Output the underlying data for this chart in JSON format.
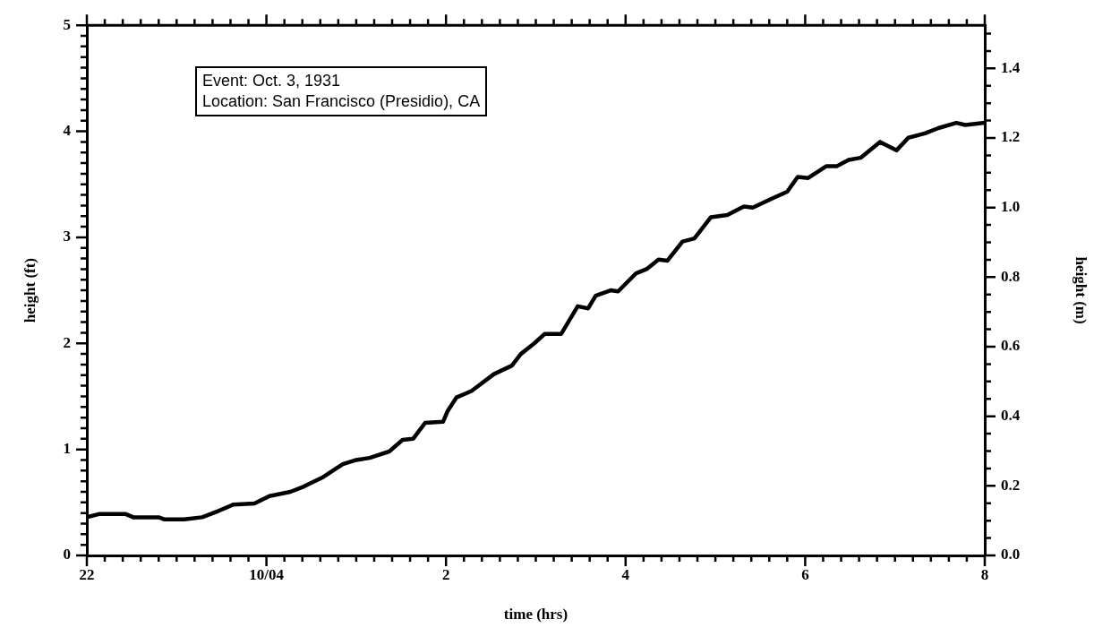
{
  "chart_data": {
    "type": "line",
    "xlabel": "time (hrs)",
    "ylabel": "height (ft)",
    "y2label": "height (m)",
    "annotations": [
      "Event: Oct. 3, 1931",
      "Location: San Francisco (Presidio), CA"
    ],
    "marker": "none",
    "line_style": "solid",
    "xlim": [
      "--10-03T22:00",
      "--10-04T08:00"
    ],
    "xticks": [
      {
        "value": "--10-03T22:00",
        "label": "22"
      },
      {
        "value": "--10-03T22:12",
        "label": null
      },
      {
        "value": "--10-03T22:24",
        "label": null
      },
      {
        "value": "--10-03T22:36",
        "label": null
      },
      {
        "value": "--10-03T22:48",
        "label": null
      },
      {
        "value": "--10-03T23:00",
        "label": null
      },
      {
        "value": "--10-03T23:12",
        "label": null
      },
      {
        "value": "--10-03T23:24",
        "label": null
      },
      {
        "value": "--10-03T23:36",
        "label": null
      },
      {
        "value": "--10-03T23:48",
        "label": null
      },
      {
        "value": "--10-04T00:00",
        "label": "10/04"
      },
      {
        "value": "--10-04T00:12",
        "label": null
      },
      {
        "value": "--10-04T00:24",
        "label": null
      },
      {
        "value": "--10-04T00:36",
        "label": null
      },
      {
        "value": "--10-04T00:48",
        "label": null
      },
      {
        "value": "--10-04T01:00",
        "label": null
      },
      {
        "value": "--10-04T01:12",
        "label": null
      },
      {
        "value": "--10-04T01:24",
        "label": null
      },
      {
        "value": "--10-04T01:36",
        "label": null
      },
      {
        "value": "--10-04T01:48",
        "label": null
      },
      {
        "value": "--10-04T02:00",
        "label": "2"
      },
      {
        "value": "--10-04T02:12",
        "label": null
      },
      {
        "value": "--10-04T02:24",
        "label": null
      },
      {
        "value": "--10-04T02:36",
        "label": null
      },
      {
        "value": "--10-04T02:48",
        "label": null
      },
      {
        "value": "--10-04T03:00",
        "label": null
      },
      {
        "value": "--10-04T03:12",
        "label": null
      },
      {
        "value": "--10-04T03:24",
        "label": null
      },
      {
        "value": "--10-04T03:36",
        "label": null
      },
      {
        "value": "--10-04T03:48",
        "label": null
      },
      {
        "value": "--10-04T04:00",
        "label": "4"
      },
      {
        "value": "--10-04T04:12",
        "label": null
      },
      {
        "value": "--10-04T04:24",
        "label": null
      },
      {
        "value": "--10-04T04:36",
        "label": null
      },
      {
        "value": "--10-04T04:48",
        "label": null
      },
      {
        "value": "--10-04T05:00",
        "label": null
      },
      {
        "value": "--10-04T05:12",
        "label": null
      },
      {
        "value": "--10-04T05:24",
        "label": null
      },
      {
        "value": "--10-04T05:36",
        "label": null
      },
      {
        "value": "--10-04T05:48",
        "label": null
      },
      {
        "value": "--10-04T06:00",
        "label": "6"
      },
      {
        "value": "--10-04T06:12",
        "label": null
      },
      {
        "value": "--10-04T06:24",
        "label": null
      },
      {
        "value": "--10-04T06:36",
        "label": null
      },
      {
        "value": "--10-04T06:48",
        "label": null
      },
      {
        "value": "--10-04T07:00",
        "label": null
      },
      {
        "value": "--10-04T07:12",
        "label": null
      },
      {
        "value": "--10-04T07:24",
        "label": null
      },
      {
        "value": "--10-04T07:36",
        "label": null
      },
      {
        "value": "--10-04T07:48",
        "label": null
      },
      {
        "value": "--10-04T08:00",
        "label": "8"
      }
    ],
    "ylim": [
      0,
      5
    ],
    "yticks": [
      0,
      {
        "value": 0.1,
        "label": null
      },
      {
        "value": 0.2,
        "label": null
      },
      {
        "value": 0.3,
        "label": null
      },
      {
        "value": 0.4,
        "label": null
      },
      {
        "value": 0.5,
        "label": null
      },
      {
        "value": 0.6,
        "label": null
      },
      {
        "value": 0.7,
        "label": null
      },
      {
        "value": 0.8,
        "label": null
      },
      {
        "value": 0.9,
        "label": null
      },
      1,
      {
        "value": 1.1,
        "label": null
      },
      {
        "value": 1.2,
        "label": null
      },
      {
        "value": 1.3,
        "label": null
      },
      {
        "value": 1.4,
        "label": null
      },
      {
        "value": 1.5,
        "label": null
      },
      {
        "value": 1.6,
        "label": null
      },
      {
        "value": 1.7,
        "label": null
      },
      {
        "value": 1.8,
        "label": null
      },
      {
        "value": 1.9,
        "label": null
      },
      2,
      {
        "value": 2.1,
        "label": null
      },
      {
        "value": 2.2,
        "label": null
      },
      {
        "value": 2.3,
        "label": null
      },
      {
        "value": 2.4,
        "label": null
      },
      {
        "value": 2.5,
        "label": null
      },
      {
        "value": 2.6,
        "label": null
      },
      {
        "value": 2.7,
        "label": null
      },
      {
        "value": 2.8,
        "label": null
      },
      {
        "value": 2.9,
        "label": null
      },
      3,
      {
        "value": 3.1,
        "label": null
      },
      {
        "value": 3.2,
        "label": null
      },
      {
        "value": 3.3,
        "label": null
      },
      {
        "value": 3.4,
        "label": null
      },
      {
        "value": 3.5,
        "label": null
      },
      {
        "value": 3.6,
        "label": null
      },
      {
        "value": 3.7,
        "label": null
      },
      {
        "value": 3.8,
        "label": null
      },
      {
        "value": 3.9,
        "label": null
      },
      4,
      {
        "value": 4.1,
        "label": null
      },
      {
        "value": 4.2,
        "label": null
      },
      {
        "value": 4.3,
        "label": null
      },
      {
        "value": 4.4,
        "label": null
      },
      {
        "value": 4.5,
        "label": null
      },
      {
        "value": 4.6,
        "label": null
      },
      {
        "value": 4.7,
        "label": null
      },
      {
        "value": 4.8,
        "label": null
      },
      {
        "value": 4.9,
        "label": null
      },
      5
    ],
    "y2lim": [
      0,
      1.524
    ],
    "y2ticks": [
      {
        "value": 0,
        "label": "0.0"
      },
      {
        "value": 0.05,
        "label": null
      },
      {
        "value": 0.1,
        "label": null
      },
      {
        "value": 0.15,
        "label": null
      },
      {
        "value": 0.2,
        "label": "0.2"
      },
      {
        "value": 0.25,
        "label": null
      },
      {
        "value": 0.3,
        "label": null
      },
      {
        "value": 0.35,
        "label": null
      },
      {
        "value": 0.4,
        "label": "0.4"
      },
      {
        "value": 0.45,
        "label": null
      },
      {
        "value": 0.5,
        "label": null
      },
      {
        "value": 0.55,
        "label": null
      },
      {
        "value": 0.6,
        "label": "0.6"
      },
      {
        "value": 0.65,
        "label": null
      },
      {
        "value": 0.7,
        "label": null
      },
      {
        "value": 0.75,
        "label": null
      },
      {
        "value": 0.8,
        "label": "0.8"
      },
      {
        "value": 0.85,
        "label": null
      },
      {
        "value": 0.9,
        "label": null
      },
      {
        "value": 0.95,
        "label": null
      },
      {
        "value": 1,
        "label": "1.0"
      },
      {
        "value": 1.05,
        "label": null
      },
      {
        "value": 1.1,
        "label": null
      },
      {
        "value": 1.15,
        "label": null
      },
      {
        "value": 1.2,
        "label": "1.2"
      },
      {
        "value": 1.25,
        "label": null
      },
      {
        "value": 1.3,
        "label": null
      },
      {
        "value": 1.35,
        "label": null
      },
      {
        "value": 1.4,
        "label": "1.4"
      },
      {
        "value": 1.45,
        "label": null
      },
      {
        "value": 1.5,
        "label": null
      }
    ],
    "series": [
      {
        "color": "#000000",
        "x": [
          "--10-03T22:00",
          "--10-03T22:08",
          "--10-03T22:26",
          "--10-03T22:31",
          "--10-03T22:48",
          "--10-03T22:52",
          "--10-03T23:05",
          "--10-03T23:17",
          "--10-03T23:28",
          "--10-03T23:38",
          "--10-03T23:52",
          "--10-04T00:02",
          "--10-04T00:16",
          "--10-04T00:25",
          "--10-04T00:38",
          "--10-04T00:51",
          "--10-04T01:00",
          "--10-04T01:09",
          "--10-04T01:22",
          "--10-04T01:31",
          "--10-04T01:38",
          "--10-04T01:46",
          "--10-04T01:58",
          "--10-04T02:01",
          "--10-04T02:07",
          "--10-04T02:17",
          "--10-04T02:32",
          "--10-04T02:44",
          "--10-04T02:50",
          "--10-04T02:59",
          "--10-04T03:06",
          "--10-04T03:17",
          "--10-04T03:28",
          "--10-04T03:35",
          "--10-04T03:40",
          "--10-04T03:50",
          "--10-04T03:55",
          "--10-04T04:07",
          "--10-04T04:14",
          "--10-04T04:22",
          "--10-04T04:28",
          "--10-04T04:38",
          "--10-04T04:46",
          "--10-04T04:57",
          "--10-04T05:08",
          "--10-04T05:19",
          "--10-04T05:25",
          "--10-04T05:37",
          "--10-04T05:48",
          "--10-04T05:55",
          "--10-04T06:02",
          "--10-04T06:14",
          "--10-04T06:21",
          "--10-04T06:29",
          "--10-04T06:37",
          "--10-04T06:50",
          "--10-04T07:01",
          "--10-04T07:09",
          "--10-04T07:20",
          "--10-04T07:29",
          "--10-04T07:41",
          "--10-04T07:47",
          "--10-04T08:00"
        ],
        "values": [
          0.36,
          0.39,
          0.39,
          0.36,
          0.36,
          0.34,
          0.34,
          0.36,
          0.42,
          0.48,
          0.49,
          0.56,
          0.6,
          0.65,
          0.74,
          0.86,
          0.9,
          0.92,
          0.98,
          1.09,
          1.1,
          1.25,
          1.26,
          1.36,
          1.49,
          1.55,
          1.71,
          1.79,
          1.9,
          2.0,
          2.09,
          2.09,
          2.35,
          2.33,
          2.45,
          2.5,
          2.49,
          2.66,
          2.7,
          2.79,
          2.78,
          2.96,
          2.99,
          3.19,
          3.21,
          3.29,
          3.28,
          3.36,
          3.43,
          3.57,
          3.56,
          3.67,
          3.67,
          3.73,
          3.75,
          3.9,
          3.82,
          3.94,
          3.98,
          4.03,
          4.08,
          4.06,
          4.08
        ]
      }
    ]
  }
}
